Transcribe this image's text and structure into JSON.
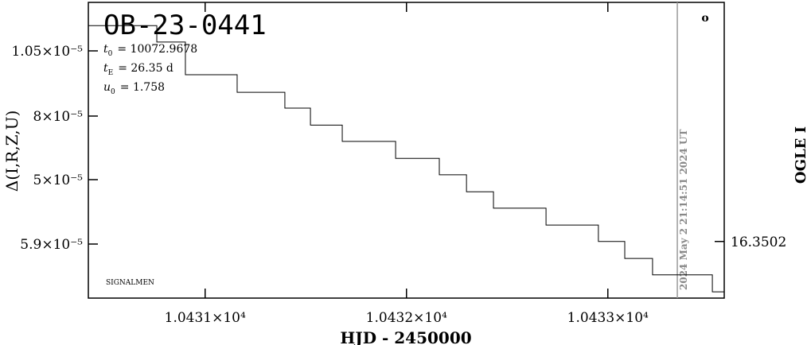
{
  "chart_data": {
    "type": "line",
    "title": "OB-23-0441",
    "params": [
      {
        "symbol": "t",
        "sub": "0",
        "text": "= 10072.9678"
      },
      {
        "symbol": "t",
        "sub": "E",
        "text": "= 26.35 d"
      },
      {
        "symbol": "u",
        "sub": "0",
        "text": "= 1.758"
      }
    ],
    "x_label": "HJD - 2450000",
    "y_label": "Δ(I,R,Z,U)",
    "y2_label": "OGLE I",
    "footer_label": "SIGNALMEN",
    "marker_label": "o",
    "now_label": "2024 May 2 21:14:51 2024 UT",
    "now_x": 10433.345,
    "left_tick_labels": [
      "1.05×10⁻⁵",
      "8×10⁻⁵",
      "5×10⁻⁵",
      "5.9×10⁻⁵"
    ],
    "xlim": [
      10430.42,
      10433.578
    ],
    "xticks": [
      {
        "value": 10431,
        "label": "1.0431×10⁴"
      },
      {
        "value": 10432,
        "label": "1.0432×10⁴"
      },
      {
        "value": 10433,
        "label": "1.0433×10⁴"
      }
    ],
    "y2lim": [
      16.35029,
      16.34982
    ],
    "y2ticks": [
      16.3502
    ],
    "series": [
      {
        "color": "#000000",
        "axis": "y2",
        "x": [
          10430.42,
          10430.76,
          10430.902,
          10431.159,
          10431.396,
          10431.523,
          10431.681,
          10431.946,
          10432.163,
          10432.298,
          10432.432,
          10432.693,
          10432.953,
          10433.084,
          10433.222,
          10433.519,
          10433.578
        ],
        "values": [
          16.349857,
          16.349883,
          16.349935,
          16.349963,
          16.349988,
          16.350015,
          16.350041,
          16.350068,
          16.350094,
          16.350121,
          16.350147,
          16.350174,
          16.3502,
          16.350227,
          16.350253,
          16.35028,
          16.35028
        ]
      }
    ]
  }
}
